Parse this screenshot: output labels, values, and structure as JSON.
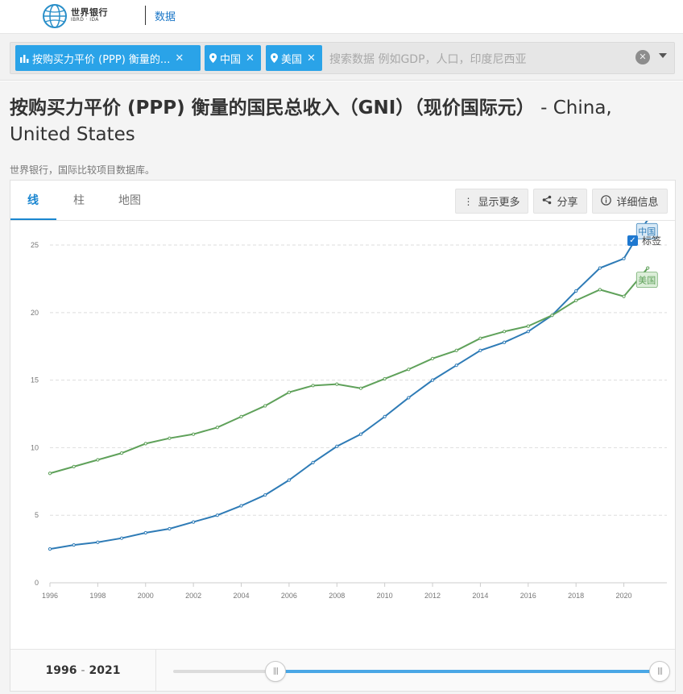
{
  "header": {
    "logo_text": "世界银行",
    "logo_sub": "IBRD · IDA",
    "nav_label": "数据"
  },
  "search": {
    "chips": [
      {
        "label": "按购买力平价 (PPP) 衡量的...",
        "icon": "bar-chart-icon"
      },
      {
        "label": "中国",
        "icon": "location-pin-icon"
      },
      {
        "label": "美国",
        "icon": "location-pin-icon"
      }
    ],
    "placeholder": "搜索数据 例如GDP，人口，印度尼西亚"
  },
  "page": {
    "title_bold": "按购买力平价 (PPP) 衡量的国民总收入（GNI）（现价国际元）",
    "title_rest": " - China, United States",
    "source": "世界银行，国际比较项目数据库。"
  },
  "tabs": [
    "线",
    "柱",
    "地图"
  ],
  "toolbar": {
    "more_label": "显示更多",
    "share_label": "分享",
    "details_label": "详细信息"
  },
  "legend": {
    "label_toggle": "标签"
  },
  "slider": {
    "start": "1996",
    "end": "2021",
    "start_fraction": 0.21,
    "end_fraction": 1.0
  },
  "chart_data": {
    "type": "line",
    "x": [
      1996,
      1997,
      1998,
      1999,
      2000,
      2001,
      2002,
      2003,
      2004,
      2005,
      2006,
      2007,
      2008,
      2009,
      2010,
      2011,
      2012,
      2013,
      2014,
      2015,
      2016,
      2017,
      2018,
      2019,
      2020,
      2021
    ],
    "xticks": [
      1996,
      1998,
      2000,
      2002,
      2004,
      2006,
      2008,
      2010,
      2012,
      2014,
      2016,
      2018,
      2020
    ],
    "yticks": [
      0,
      5,
      10,
      15,
      20,
      25
    ],
    "ylim": [
      0,
      25.6
    ],
    "xlim": [
      1996,
      2021.8
    ],
    "grid": true,
    "series": [
      {
        "name": "中国",
        "color": "#2e7bb6",
        "values": [
          2.5,
          2.8,
          3.0,
          3.3,
          3.7,
          4.0,
          4.5,
          5.0,
          5.7,
          6.5,
          7.6,
          8.9,
          10.1,
          11.0,
          12.3,
          13.7,
          15.0,
          16.1,
          17.2,
          17.8,
          18.6,
          19.8,
          21.6,
          23.3,
          24.0,
          26.9
        ]
      },
      {
        "name": "美国",
        "color": "#5fa15a",
        "values": [
          8.1,
          8.6,
          9.1,
          9.6,
          10.3,
          10.7,
          11.0,
          11.5,
          12.3,
          13.1,
          14.1,
          14.6,
          14.7,
          14.4,
          15.1,
          15.8,
          16.6,
          17.2,
          18.1,
          18.6,
          19.0,
          19.8,
          20.9,
          21.7,
          21.2,
          23.3
        ]
      }
    ]
  }
}
